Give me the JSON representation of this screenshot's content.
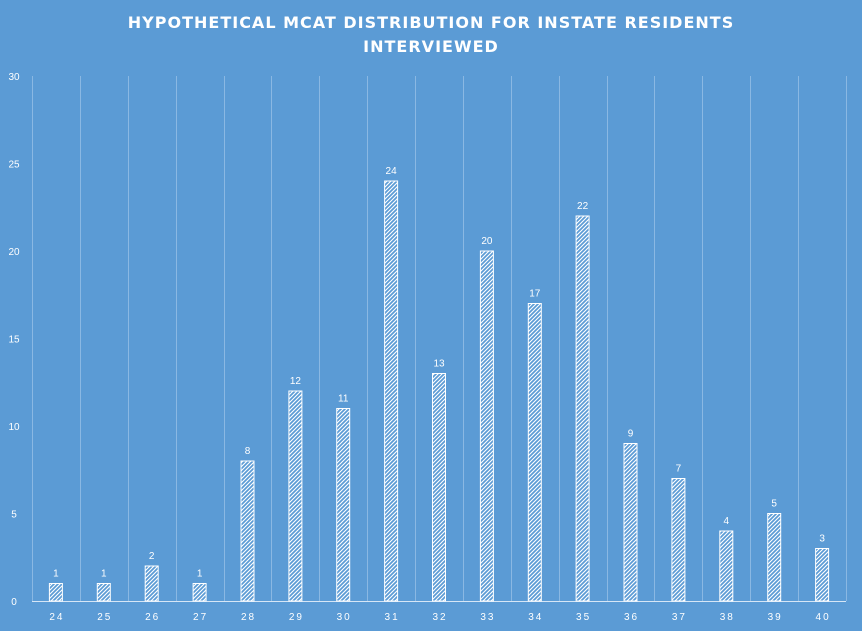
{
  "chart_data": {
    "type": "bar",
    "title": "HYPOTHETICAL MCAT DISTRIBUTION  FOR INSTATE RESIDENTS INTERVIEWED",
    "title_lines": [
      "HYPOTHETICAL MCAT DISTRIBUTION  FOR INSTATE  RESIDENTS",
      "INTERVIEWED"
    ],
    "xlabel": "",
    "ylabel": "",
    "categories": [
      "24",
      "25",
      "26",
      "27",
      "28",
      "29",
      "30",
      "31",
      "32",
      "33",
      "34",
      "35",
      "36",
      "37",
      "38",
      "39",
      "40"
    ],
    "values": [
      1,
      1,
      2,
      1,
      8,
      12,
      11,
      24,
      13,
      20,
      17,
      22,
      9,
      7,
      4,
      5,
      3
    ],
    "ylim": [
      0,
      30
    ],
    "yticks": [
      "0",
      "5",
      "10",
      "15",
      "20",
      "25",
      "30"
    ],
    "grid": "vertical",
    "legend": "none",
    "data_labels": true,
    "bar_fill": "diagonal-hatch",
    "colors": {
      "background": "#5b9bd5",
      "bar_stroke": "#ffffff",
      "text": "#ffffff",
      "gridline": "#8ab8e3",
      "axis": "#d6e6f6"
    }
  }
}
